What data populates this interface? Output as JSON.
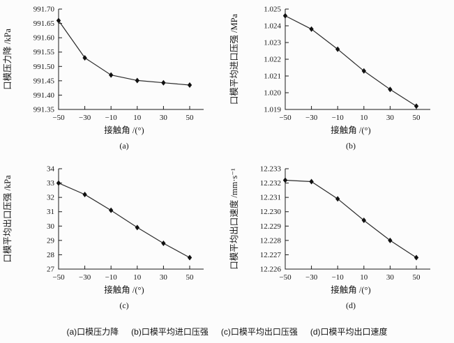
{
  "page": {
    "background": "#fcfcfc",
    "axis_color": "#1a1a1a",
    "line_color": "#2a2a2a",
    "marker_color": "#111111"
  },
  "caption": {
    "parts": [
      "(a)口模压力降",
      "(b)口模平均进口压强",
      "(c)口模平均出口压强",
      "(d)口模平均出口速度"
    ]
  },
  "chart_data": [
    {
      "type": "line",
      "id": "a",
      "sublabel": "(a)",
      "xlabel": "接触角 /(°)",
      "ylabel": "口模压力降 /kPa",
      "x": [
        -50,
        -30,
        -10,
        10,
        30,
        50
      ],
      "values": [
        991.66,
        991.53,
        991.47,
        991.451,
        991.443,
        991.435
      ],
      "xlim": [
        -50,
        50
      ],
      "ylim": [
        991.35,
        991.7
      ],
      "ytick_step": 0.05,
      "yticks": [
        "991.35",
        "991.40",
        "991.45",
        "991.50",
        "991.55",
        "991.60",
        "991.65",
        "991.70"
      ],
      "xticks": [
        "−50",
        "−30",
        "−10",
        "10",
        "30",
        "50"
      ],
      "marker": "diamond",
      "grid": false,
      "legend": null
    },
    {
      "type": "line",
      "id": "b",
      "sublabel": "(b)",
      "xlabel": "接触角 /(°)",
      "ylabel": "口模平均进口压强 /MPa",
      "x": [
        -50,
        -30,
        -10,
        10,
        30,
        50
      ],
      "values": [
        1.0246,
        1.0238,
        1.0226,
        1.0213,
        1.0202,
        1.0192
      ],
      "xlim": [
        -50,
        50
      ],
      "ylim": [
        1.019,
        1.025
      ],
      "ytick_step": 0.001,
      "yticks": [
        "1.019",
        "1.020",
        "1.021",
        "1.022",
        "1.023",
        "1.024",
        "1.025"
      ],
      "xticks": [
        "−50",
        "−30",
        "−10",
        "10",
        "30",
        "50"
      ],
      "marker": "diamond",
      "grid": false,
      "legend": null
    },
    {
      "type": "line",
      "id": "c",
      "sublabel": "(c)",
      "xlabel": "接触角 /(°)",
      "ylabel": "口模平均出口压强 /kPa",
      "x": [
        -50,
        -30,
        -10,
        10,
        30,
        50
      ],
      "values": [
        33.0,
        32.2,
        31.1,
        29.9,
        28.8,
        27.8
      ],
      "xlim": [
        -50,
        50
      ],
      "ylim": [
        27,
        34
      ],
      "ytick_step": 1,
      "yticks": [
        "27",
        "28",
        "29",
        "30",
        "31",
        "32",
        "33",
        "34"
      ],
      "xticks": [
        "−50",
        "−30",
        "−10",
        "10",
        "30",
        "50"
      ],
      "marker": "diamond",
      "grid": false,
      "legend": null
    },
    {
      "type": "line",
      "id": "d",
      "sublabel": "(d)",
      "xlabel": "接触角 /(°)",
      "ylabel": "口模平均出口速度 /mm·s⁻¹",
      "x": [
        -50,
        -30,
        -10,
        10,
        30,
        50
      ],
      "values": [
        12.2322,
        12.2321,
        12.2309,
        12.2294,
        12.228,
        12.2268
      ],
      "xlim": [
        -50,
        50
      ],
      "ylim": [
        12.226,
        12.233
      ],
      "ytick_step": 0.001,
      "yticks": [
        "12.226",
        "12.227",
        "12.228",
        "12.229",
        "12.230",
        "12.231",
        "12.232",
        "12.233"
      ],
      "xticks": [
        "−50",
        "−30",
        "−10",
        "10",
        "30",
        "50"
      ],
      "marker": "diamond",
      "grid": false,
      "legend": null
    }
  ]
}
